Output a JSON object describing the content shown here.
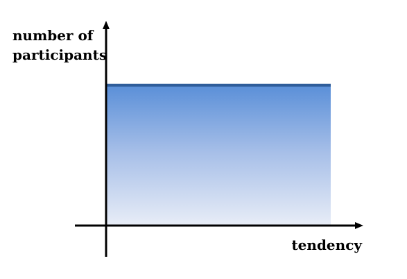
{
  "chart_data": {
    "type": "area",
    "title": "",
    "xlabel": "tendency",
    "ylabel_lines": [
      "number of",
      "participants"
    ],
    "x": [
      0,
      1
    ],
    "series": [
      {
        "values": [
          0.7,
          0.7
        ]
      }
    ],
    "xlim": [
      0,
      1
    ],
    "ylim": [
      0,
      1
    ],
    "grid": false,
    "x_ticks_shown": false,
    "y_ticks_shown": false,
    "colors": {
      "line": "#2f5d9a",
      "fill_top": "#5a8fd8",
      "fill_mid": "#a7bfe8",
      "fill_bottom": "#e8edf7",
      "axis": "#000000"
    }
  }
}
